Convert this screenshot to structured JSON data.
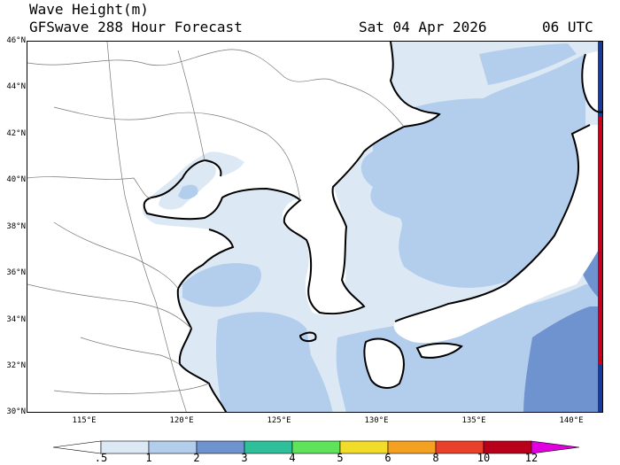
{
  "header": {
    "variable": "Wave Height(m)",
    "model_forecast": "GFSwave 288 Hour Forecast",
    "date": "Sat 04 Apr 2026",
    "time": "06 UTC"
  },
  "map": {
    "lat_labels": [
      "46°N",
      "44°N",
      "42°N",
      "40°N",
      "38°N",
      "36°N",
      "34°N",
      "32°N",
      "30°N"
    ],
    "lon_labels": [
      "115°E",
      "120°E",
      "125°E",
      "130°E",
      "135°E",
      "140°E"
    ],
    "colors": {
      "land": "#ffffff",
      "sea_0_5_1": "#dce9f5",
      "sea_1_2": "#b3cdec",
      "sea_2_3": "#6f93cf",
      "coast": "#000000",
      "border": "#666666"
    }
  },
  "colorbar": {
    "levels": [
      ".5",
      "1",
      "2",
      "3",
      "4",
      "5",
      "6",
      "8",
      "10",
      "12"
    ],
    "colors": [
      "#ffffff",
      "#dce9f5",
      "#b3cdec",
      "#6f93cf",
      "#2ec09a",
      "#5fe35a",
      "#f2dc2a",
      "#f4a020",
      "#e8402a",
      "#b8001a",
      "#e000e0"
    ]
  }
}
